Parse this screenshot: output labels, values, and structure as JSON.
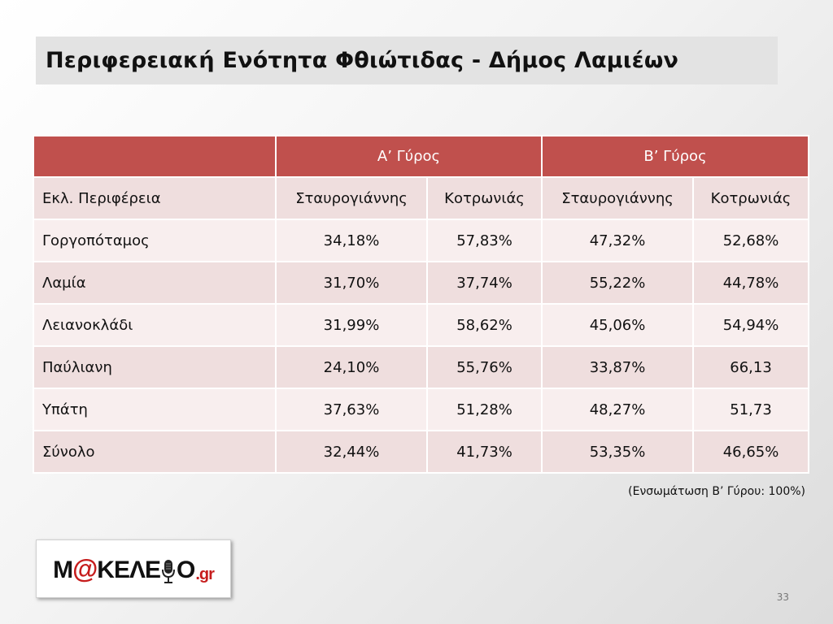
{
  "title": "Περιφερειακή Ενότητα Φθιώτιδας - Δήμος Λαμιέων",
  "table": {
    "round_headers": [
      "Α’ Γύρος",
      "Β’ Γύρος"
    ],
    "region_header": "Εκλ. Περιφέρεια",
    "candidate_headers": [
      "Σταυρογιάννης",
      "Κοτρωνιάς",
      "Σταυρογιάννης",
      "Κοτρωνιάς"
    ],
    "rows": [
      {
        "name": "Γοργοπόταμος",
        "values": [
          "34,18%",
          "57,83%",
          "47,32%",
          "52,68%"
        ]
      },
      {
        "name": "Λαμία",
        "values": [
          "31,70%",
          "37,74%",
          "55,22%",
          "44,78%"
        ]
      },
      {
        "name": "Λειανοκλάδι",
        "values": [
          "31,99%",
          "58,62%",
          "45,06%",
          "54,94%"
        ]
      },
      {
        "name": "Παύλιανη",
        "values": [
          "24,10%",
          "55,76%",
          "33,87%",
          "66,13"
        ]
      },
      {
        "name": "Υπάτη",
        "values": [
          "37,63%",
          "51,28%",
          "48,27%",
          "51,73"
        ]
      },
      {
        "name": "Σύνολο",
        "values": [
          "32,44%",
          "41,73%",
          "53,35%",
          "46,65%"
        ]
      }
    ]
  },
  "note": "(Ενσωμάτωση Β’ Γύρου: 100%)",
  "logo": {
    "part1": "M",
    "at": "@",
    "part2": "ΚΕΛΕ",
    "part3": "Ο",
    "suffix": ".gr",
    "icon": "microphone-icon"
  },
  "page_number": "33",
  "colors": {
    "header_red": "#c0504d",
    "row_light": "#f8eeee",
    "row_dark": "#efdede",
    "logo_red": "#c61d1d"
  }
}
